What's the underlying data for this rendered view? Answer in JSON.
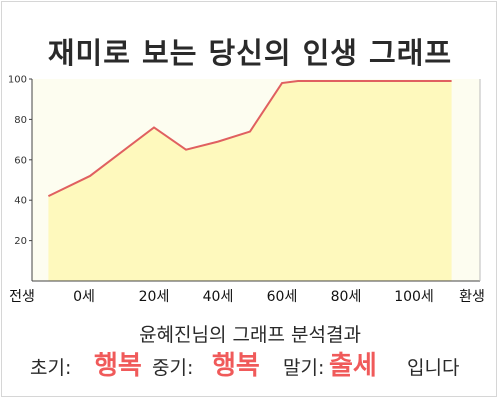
{
  "title": "재미로 보는 당신의 인생 그래프",
  "result": {
    "heading": "윤혜진님의 그래프 분석결과",
    "early_label": "초기:",
    "early_value": "행복",
    "mid_label": "중기:",
    "mid_value": "행복",
    "late_label": "말기:",
    "late_value": "출세",
    "suffix": "입니다"
  },
  "colors": {
    "line": "#e06060",
    "fill": "#fef9bd",
    "plot_bg": "#fdfdf0",
    "highlight": "#f05a5a"
  },
  "chart_data": {
    "type": "area",
    "x_ticks": [
      "전생",
      "0세",
      "20세",
      "40세",
      "60세",
      "80세",
      "100세",
      "환생"
    ],
    "y_ticks": [
      20,
      40,
      60,
      80,
      100
    ],
    "ylim": [
      0,
      100
    ],
    "grid": false,
    "x": [
      -13,
      0,
      20,
      30,
      40,
      50,
      60,
      65,
      80,
      100,
      113
    ],
    "y": [
      42,
      52,
      76,
      65,
      69,
      74,
      98,
      99,
      99,
      99,
      99
    ]
  }
}
